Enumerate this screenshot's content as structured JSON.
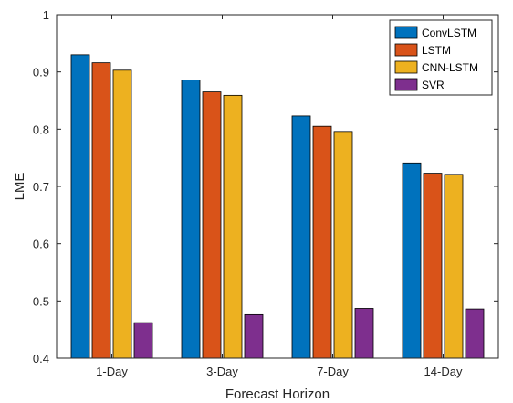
{
  "chart_data": {
    "type": "bar",
    "title": "",
    "xlabel": "Forecast Horizon",
    "ylabel": "LME",
    "ylim": [
      0.4,
      1.0
    ],
    "yticks": [
      "0.4",
      "0.5",
      "0.6",
      "0.7",
      "0.8",
      "0.9",
      "1"
    ],
    "categories": [
      "1-Day",
      "3-Day",
      "7-Day",
      "14-Day"
    ],
    "grid": false,
    "legend_position": "top-right",
    "series": [
      {
        "name": "ConvLSTM",
        "color": "#0072BD",
        "values": [
          0.93,
          0.886,
          0.823,
          0.741
        ]
      },
      {
        "name": "LSTM",
        "color": "#D95319",
        "values": [
          0.916,
          0.865,
          0.805,
          0.723
        ]
      },
      {
        "name": "CNN-LSTM",
        "color": "#EDB120",
        "values": [
          0.903,
          0.859,
          0.796,
          0.721
        ]
      },
      {
        "name": "SVR",
        "color": "#7E2F8E",
        "values": [
          0.462,
          0.476,
          0.487,
          0.486
        ]
      }
    ]
  }
}
